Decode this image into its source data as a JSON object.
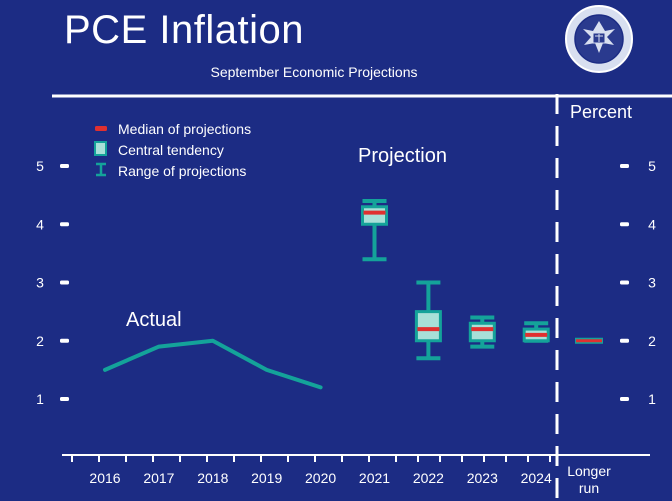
{
  "title": "PCE Inflation",
  "subtitle": "September Economic Projections",
  "seal_text": "UNITED STATES FEDERAL RESERVE SYSTEM",
  "colors": {
    "background": "#1c2c84",
    "line": "#14a39a",
    "box_fill": "#a8e0d8",
    "median": "#e03030",
    "text": "#ffffff"
  },
  "chart_data": {
    "type": "box-and-line",
    "y_unit_label": "Percent",
    "ylim": [
      0,
      5.6
    ],
    "y_ticks": [
      "1",
      "2",
      "3",
      "4",
      "5"
    ],
    "categories": [
      "2016",
      "2017",
      "2018",
      "2019",
      "2020",
      "2021",
      "2022",
      "2023",
      "2024",
      "Longer run"
    ],
    "legend": {
      "placement": "top-left",
      "median_label": "Median of projections",
      "central_label": "Central tendency",
      "range_label": "Range of projections"
    },
    "annotations": {
      "actual": "Actual",
      "projection": "Projection"
    },
    "actual": {
      "x": [
        "2016",
        "2017",
        "2018",
        "2019",
        "2020"
      ],
      "y": [
        1.5,
        1.9,
        2.0,
        1.5,
        1.2
      ]
    },
    "projections": [
      {
        "x": "2021",
        "range_low": 3.4,
        "range_high": 4.4,
        "central_low": 4.0,
        "central_high": 4.3,
        "median": 4.2
      },
      {
        "x": "2022",
        "range_low": 1.7,
        "range_high": 3.0,
        "central_low": 2.0,
        "central_high": 2.5,
        "median": 2.2
      },
      {
        "x": "2023",
        "range_low": 1.9,
        "range_high": 2.4,
        "central_low": 2.0,
        "central_high": 2.3,
        "median": 2.2
      },
      {
        "x": "2024",
        "range_low": 2.0,
        "range_high": 2.3,
        "central_low": 2.0,
        "central_high": 2.2,
        "median": 2.1
      },
      {
        "x": "Longer run",
        "median": 2.0
      }
    ]
  }
}
